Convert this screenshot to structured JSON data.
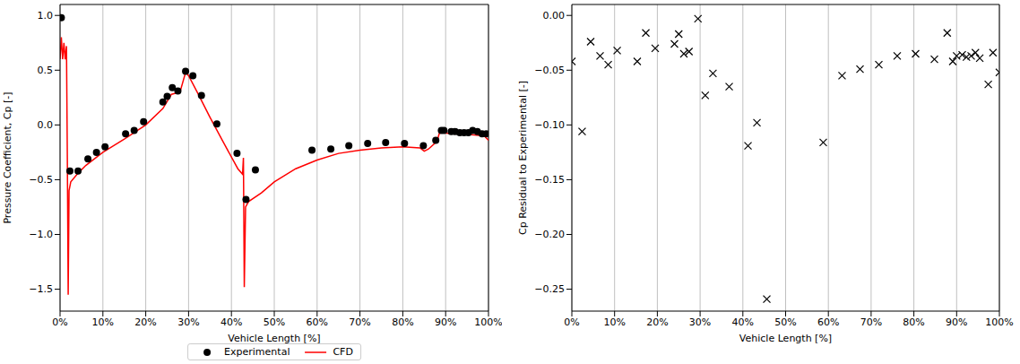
{
  "chart_data": [
    {
      "type": "line",
      "x_label": "Vehicle Length [%]",
      "y_label": "Pressure Coefficient, Cp [-]",
      "xlim": [
        0,
        100
      ],
      "xticks": [
        {
          "value": 0,
          "label": "0%"
        },
        {
          "value": 10,
          "label": "10%"
        },
        {
          "value": 20,
          "label": "20%"
        },
        {
          "value": 30,
          "label": "30%"
        },
        {
          "value": 40,
          "label": "40%"
        },
        {
          "value": 50,
          "label": "50%"
        },
        {
          "value": 60,
          "label": "60%"
        },
        {
          "value": 70,
          "label": "70%"
        },
        {
          "value": 80,
          "label": "80%"
        },
        {
          "value": 90,
          "label": "90%"
        },
        {
          "value": 100,
          "label": "100%"
        }
      ],
      "ylim": [
        -1.7,
        1.1
      ],
      "yticks": [
        {
          "value": -1.5,
          "label": "−1.5"
        },
        {
          "value": -1,
          "label": "−1.0"
        },
        {
          "value": -0.5,
          "label": "−0.5"
        },
        {
          "value": 0,
          "label": "0.0"
        },
        {
          "value": 0.5,
          "label": "0.5"
        },
        {
          "value": 1,
          "label": "1.0"
        }
      ],
      "grid": "x",
      "legend": "bottom",
      "series": [
        {
          "name": "Experimental",
          "type": "scatter",
          "marker": "o",
          "color": "#000000",
          "x": [
            0.3,
            2.3,
            4.2,
            6.5,
            8.5,
            10.5,
            15.3,
            17.3,
            19.5,
            24.0,
            25.0,
            26.2,
            27.5,
            29.3,
            31.0,
            33.0,
            36.6,
            41.3,
            43.4,
            45.6,
            58.8,
            63.2,
            67.4,
            71.8,
            76.0,
            80.4,
            84.8,
            87.7,
            89.0,
            89.6,
            91.3,
            92.2,
            93.3,
            94.3,
            95.3,
            96.3,
            97.4,
            98.5,
            99.5
          ],
          "values": [
            0.98,
            -0.42,
            -0.42,
            -0.31,
            -0.25,
            -0.2,
            -0.08,
            -0.05,
            0.03,
            0.21,
            0.26,
            0.34,
            0.31,
            0.49,
            0.45,
            0.27,
            0.01,
            -0.26,
            -0.68,
            -0.41,
            -0.23,
            -0.22,
            -0.19,
            -0.17,
            -0.16,
            -0.17,
            -0.19,
            -0.14,
            -0.05,
            -0.05,
            -0.06,
            -0.06,
            -0.07,
            -0.07,
            -0.07,
            -0.05,
            -0.06,
            -0.08,
            -0.08
          ]
        },
        {
          "name": "CFD",
          "type": "line",
          "line_style": "solid",
          "color": "#ff0000",
          "x": [
            0,
            0.3,
            0.6,
            0.9,
            1.2,
            1.5,
            1.7,
            1.9,
            2.1,
            2.5,
            4,
            6,
            10,
            15,
            20,
            24,
            26,
            28,
            29.3,
            30,
            32,
            35,
            38,
            41.5,
            42.6,
            42.8,
            43.0,
            43.3,
            44,
            47,
            50,
            55,
            60,
            65,
            70,
            75,
            80,
            84,
            85,
            86,
            88,
            88.5,
            89,
            92,
            96,
            99,
            100
          ],
          "values": [
            0.6,
            0.8,
            0.6,
            0.75,
            0.6,
            0.72,
            -0.3,
            -1.55,
            -0.6,
            -0.52,
            -0.45,
            -0.37,
            -0.25,
            -0.13,
            0.0,
            0.15,
            0.28,
            0.3,
            0.48,
            0.45,
            0.3,
            0.07,
            -0.15,
            -0.4,
            -0.45,
            -0.3,
            -1.48,
            -0.75,
            -0.7,
            -0.62,
            -0.52,
            -0.4,
            -0.32,
            -0.26,
            -0.23,
            -0.21,
            -0.2,
            -0.21,
            -0.24,
            -0.22,
            -0.15,
            -0.08,
            -0.07,
            -0.08,
            -0.09,
            -0.1,
            -0.14
          ]
        }
      ]
    },
    {
      "type": "scatter",
      "x_label": "Vehicle Length [%]",
      "y_label": "Cp Residual to Experimental [-]",
      "xlim": [
        0,
        100
      ],
      "xticks": [
        {
          "value": 0,
          "label": "0%"
        },
        {
          "value": 10,
          "label": "10%"
        },
        {
          "value": 20,
          "label": "20%"
        },
        {
          "value": 30,
          "label": "30%"
        },
        {
          "value": 40,
          "label": "40%"
        },
        {
          "value": 50,
          "label": "50%"
        },
        {
          "value": 60,
          "label": "60%"
        },
        {
          "value": 70,
          "label": "70%"
        },
        {
          "value": 80,
          "label": "80%"
        },
        {
          "value": 90,
          "label": "90%"
        },
        {
          "value": 100,
          "label": "100%"
        }
      ],
      "ylim": [
        -0.27,
        0.01
      ],
      "yticks": [
        {
          "value": -0.25,
          "label": "−0.25"
        },
        {
          "value": -0.2,
          "label": "−0.20"
        },
        {
          "value": -0.15,
          "label": "−0.15"
        },
        {
          "value": -0.1,
          "label": "−0.10"
        },
        {
          "value": -0.05,
          "label": "−0.05"
        },
        {
          "value": 0,
          "label": "0.00"
        }
      ],
      "grid": "x",
      "series": [
        {
          "type": "scatter",
          "marker": "x",
          "color": "#000000",
          "x": [
            0,
            2.4,
            4.4,
            6.6,
            8.5,
            10.6,
            15.3,
            17.3,
            19.5,
            24,
            25,
            26.2,
            27.4,
            29.5,
            31.2,
            33,
            36.8,
            41.2,
            43.3,
            45.6,
            58.8,
            63.2,
            67.4,
            71.8,
            76.1,
            80.4,
            84.8,
            87.8,
            89.1,
            90.0,
            91.3,
            92.3,
            93.4,
            94.4,
            95.4,
            97.4,
            98.5,
            100
          ],
          "values": [
            -0.042,
            -0.106,
            -0.024,
            -0.037,
            -0.045,
            -0.032,
            -0.042,
            -0.016,
            -0.03,
            -0.026,
            -0.017,
            -0.035,
            -0.033,
            -0.003,
            -0.073,
            -0.053,
            -0.065,
            -0.119,
            -0.098,
            -0.259,
            -0.116,
            -0.055,
            -0.049,
            -0.045,
            -0.037,
            -0.035,
            -0.04,
            -0.016,
            -0.042,
            -0.037,
            -0.036,
            -0.038,
            -0.037,
            -0.034,
            -0.039,
            -0.063,
            -0.034,
            -0.052
          ]
        }
      ]
    }
  ]
}
